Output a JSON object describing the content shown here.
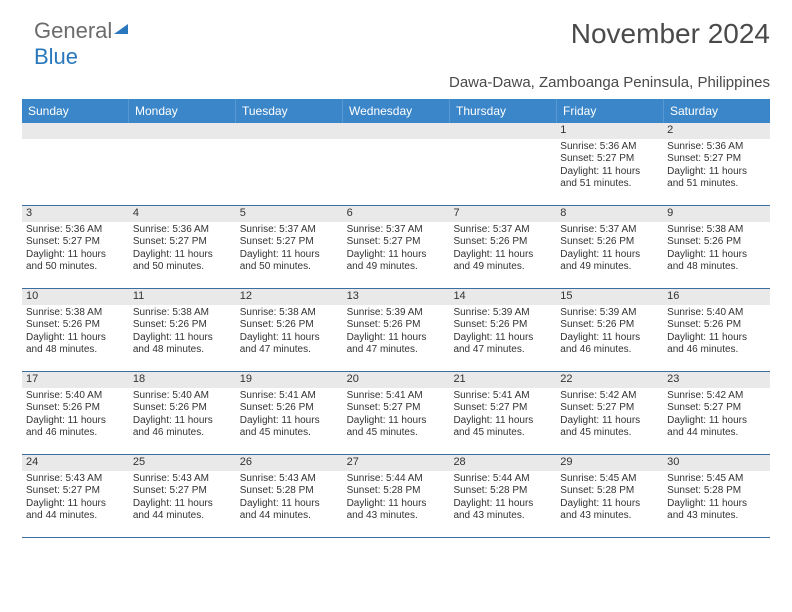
{
  "logo": {
    "part1": "General",
    "part2": "Blue",
    "triangle_color": "#2978bd"
  },
  "title": "November 2024",
  "location": "Dawa-Dawa, Zamboanga Peninsula, Philippines",
  "colors": {
    "header_bg": "#3a86c8",
    "header_text": "#ffffff",
    "gray_strip": "#e9e9e9",
    "border": "#3a6fa0",
    "text": "#333333",
    "logo_gray": "#6b6b6b",
    "logo_blue": "#2978bd"
  },
  "day_headers": [
    "Sunday",
    "Monday",
    "Tuesday",
    "Wednesday",
    "Thursday",
    "Friday",
    "Saturday"
  ],
  "weeks": [
    [
      {
        "n": "",
        "lines": []
      },
      {
        "n": "",
        "lines": []
      },
      {
        "n": "",
        "lines": []
      },
      {
        "n": "",
        "lines": []
      },
      {
        "n": "",
        "lines": []
      },
      {
        "n": "1",
        "lines": [
          "Sunrise: 5:36 AM",
          "Sunset: 5:27 PM",
          "Daylight: 11 hours and 51 minutes."
        ]
      },
      {
        "n": "2",
        "lines": [
          "Sunrise: 5:36 AM",
          "Sunset: 5:27 PM",
          "Daylight: 11 hours and 51 minutes."
        ]
      }
    ],
    [
      {
        "n": "3",
        "lines": [
          "Sunrise: 5:36 AM",
          "Sunset: 5:27 PM",
          "Daylight: 11 hours and 50 minutes."
        ]
      },
      {
        "n": "4",
        "lines": [
          "Sunrise: 5:36 AM",
          "Sunset: 5:27 PM",
          "Daylight: 11 hours and 50 minutes."
        ]
      },
      {
        "n": "5",
        "lines": [
          "Sunrise: 5:37 AM",
          "Sunset: 5:27 PM",
          "Daylight: 11 hours and 50 minutes."
        ]
      },
      {
        "n": "6",
        "lines": [
          "Sunrise: 5:37 AM",
          "Sunset: 5:27 PM",
          "Daylight: 11 hours and 49 minutes."
        ]
      },
      {
        "n": "7",
        "lines": [
          "Sunrise: 5:37 AM",
          "Sunset: 5:26 PM",
          "Daylight: 11 hours and 49 minutes."
        ]
      },
      {
        "n": "8",
        "lines": [
          "Sunrise: 5:37 AM",
          "Sunset: 5:26 PM",
          "Daylight: 11 hours and 49 minutes."
        ]
      },
      {
        "n": "9",
        "lines": [
          "Sunrise: 5:38 AM",
          "Sunset: 5:26 PM",
          "Daylight: 11 hours and 48 minutes."
        ]
      }
    ],
    [
      {
        "n": "10",
        "lines": [
          "Sunrise: 5:38 AM",
          "Sunset: 5:26 PM",
          "Daylight: 11 hours and 48 minutes."
        ]
      },
      {
        "n": "11",
        "lines": [
          "Sunrise: 5:38 AM",
          "Sunset: 5:26 PM",
          "Daylight: 11 hours and 48 minutes."
        ]
      },
      {
        "n": "12",
        "lines": [
          "Sunrise: 5:38 AM",
          "Sunset: 5:26 PM",
          "Daylight: 11 hours and 47 minutes."
        ]
      },
      {
        "n": "13",
        "lines": [
          "Sunrise: 5:39 AM",
          "Sunset: 5:26 PM",
          "Daylight: 11 hours and 47 minutes."
        ]
      },
      {
        "n": "14",
        "lines": [
          "Sunrise: 5:39 AM",
          "Sunset: 5:26 PM",
          "Daylight: 11 hours and 47 minutes."
        ]
      },
      {
        "n": "15",
        "lines": [
          "Sunrise: 5:39 AM",
          "Sunset: 5:26 PM",
          "Daylight: 11 hours and 46 minutes."
        ]
      },
      {
        "n": "16",
        "lines": [
          "Sunrise: 5:40 AM",
          "Sunset: 5:26 PM",
          "Daylight: 11 hours and 46 minutes."
        ]
      }
    ],
    [
      {
        "n": "17",
        "lines": [
          "Sunrise: 5:40 AM",
          "Sunset: 5:26 PM",
          "Daylight: 11 hours and 46 minutes."
        ]
      },
      {
        "n": "18",
        "lines": [
          "Sunrise: 5:40 AM",
          "Sunset: 5:26 PM",
          "Daylight: 11 hours and 46 minutes."
        ]
      },
      {
        "n": "19",
        "lines": [
          "Sunrise: 5:41 AM",
          "Sunset: 5:26 PM",
          "Daylight: 11 hours and 45 minutes."
        ]
      },
      {
        "n": "20",
        "lines": [
          "Sunrise: 5:41 AM",
          "Sunset: 5:27 PM",
          "Daylight: 11 hours and 45 minutes."
        ]
      },
      {
        "n": "21",
        "lines": [
          "Sunrise: 5:41 AM",
          "Sunset: 5:27 PM",
          "Daylight: 11 hours and 45 minutes."
        ]
      },
      {
        "n": "22",
        "lines": [
          "Sunrise: 5:42 AM",
          "Sunset: 5:27 PM",
          "Daylight: 11 hours and 45 minutes."
        ]
      },
      {
        "n": "23",
        "lines": [
          "Sunrise: 5:42 AM",
          "Sunset: 5:27 PM",
          "Daylight: 11 hours and 44 minutes."
        ]
      }
    ],
    [
      {
        "n": "24",
        "lines": [
          "Sunrise: 5:43 AM",
          "Sunset: 5:27 PM",
          "Daylight: 11 hours and 44 minutes."
        ]
      },
      {
        "n": "25",
        "lines": [
          "Sunrise: 5:43 AM",
          "Sunset: 5:27 PM",
          "Daylight: 11 hours and 44 minutes."
        ]
      },
      {
        "n": "26",
        "lines": [
          "Sunrise: 5:43 AM",
          "Sunset: 5:28 PM",
          "Daylight: 11 hours and 44 minutes."
        ]
      },
      {
        "n": "27",
        "lines": [
          "Sunrise: 5:44 AM",
          "Sunset: 5:28 PM",
          "Daylight: 11 hours and 43 minutes."
        ]
      },
      {
        "n": "28",
        "lines": [
          "Sunrise: 5:44 AM",
          "Sunset: 5:28 PM",
          "Daylight: 11 hours and 43 minutes."
        ]
      },
      {
        "n": "29",
        "lines": [
          "Sunrise: 5:45 AM",
          "Sunset: 5:28 PM",
          "Daylight: 11 hours and 43 minutes."
        ]
      },
      {
        "n": "30",
        "lines": [
          "Sunrise: 5:45 AM",
          "Sunset: 5:28 PM",
          "Daylight: 11 hours and 43 minutes."
        ]
      }
    ]
  ]
}
